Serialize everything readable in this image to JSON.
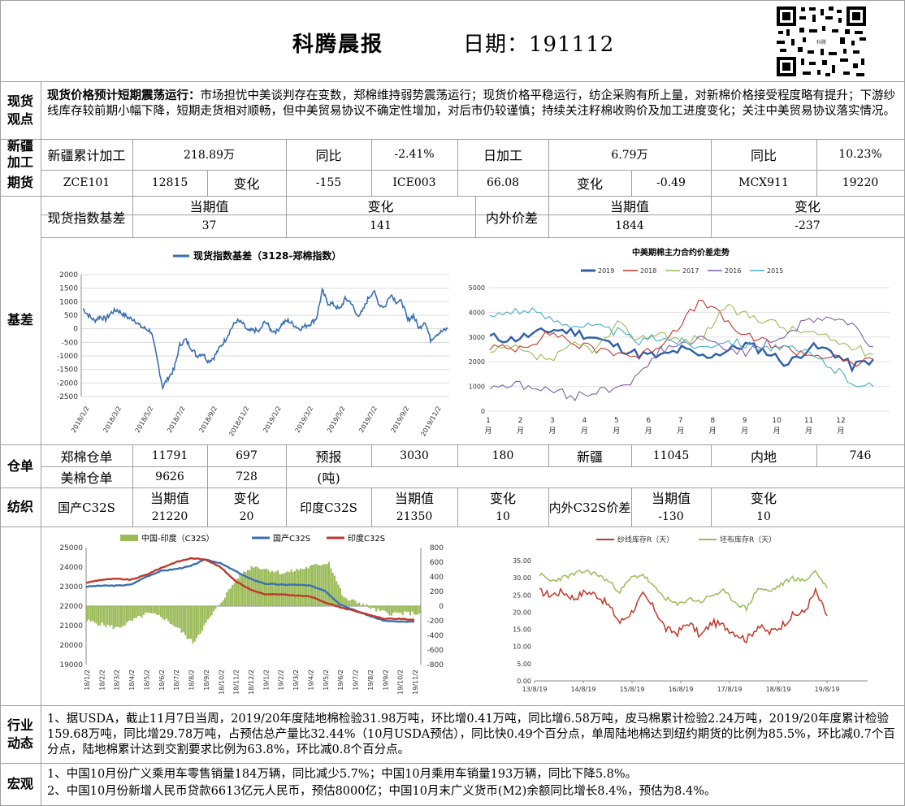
{
  "header": {
    "title": "科腾晨报",
    "date_label": "日期：191112"
  },
  "sections": {
    "spot": "现货\n观点",
    "xj": "新疆\n加工",
    "fut": "期货",
    "basis": "基差",
    "wh": "仓单",
    "tex": "纺织",
    "ind": "行业\n动态",
    "macro": "宏观"
  },
  "spot_view": {
    "lead": "现货价格预计短期震荡运行：",
    "body": "市场担忧中美谈判存在变数，郑棉维持弱势震荡运行；现货价格平稳运行，纺企采购有所上量，对新棉价格接受程度略有提升；下游纱线库存较前期小幅下降，短期走货相对顺畅，但中美贸易协议不确定性增加，对后市仍较谨慎；持续关注籽棉收购价及加工进度变化；关注中美贸易协议落实情况。"
  },
  "xj_row": [
    "新疆累计加工",
    "218.89万",
    "同比",
    "-2.41%",
    "日加工",
    "6.79万",
    "同比",
    "10.23%"
  ],
  "fut_row": [
    "ZCE101",
    "12815",
    "变化",
    "-155",
    "ICE003",
    "66.08",
    "变化",
    "-0.49",
    "MCX911",
    "19220"
  ],
  "basis_table": {
    "idx_label": "现货指数基差",
    "cur": "当期值",
    "chg": "变化",
    "idx_cur": "37",
    "idx_chg": "141",
    "io_label": "内外价差",
    "io_cur": "1844",
    "io_chg": "-237"
  },
  "warehouse": {
    "zz_label": "郑棉仓单",
    "zz_val": "11791",
    "zz_chg": "697",
    "yb1": "预报",
    "yb2": "(吨)",
    "yb_val": "3030",
    "yb_chg": "180",
    "xj_label": "新疆",
    "xj_val": "11045",
    "nd_label": "内地",
    "nd_val": "746",
    "us_label": "美棉仓单",
    "us_val": "9626",
    "us_chg": "728"
  },
  "textile": {
    "cur": "当期值",
    "chg": "变化",
    "gc_label": "国产C32S",
    "gc_cur": "21220",
    "gc_chg": "20",
    "yd_label": "印度C32S",
    "yd_cur": "21350",
    "yd_chg": "10",
    "nw_label": "内外C32S价差",
    "nw_cur": "-130",
    "nw_chg": "10"
  },
  "industry": "1、据USDA，截止11月7日当周，2019/20年度陆地棉检验31.98万吨，环比增0.41万吨，同比增6.58万吨，皮马棉累计检验2.24万吨，2019/20年度累计检验159.68万吨，同比增29.78万吨，占预估总产量比32.44%（10月USDA预估），同比快0.49个百分点，单周陆地棉达到纽约期货的比例为85.5%，环比减0.7个百分点，陆地棉累计达到交割要求比例为63.8%，环比减0.8个百分点。",
  "macro": [
    "1、中国10月份广义乘用车零售销量184万辆，同比减少5.7%；中国10月乘用车销量193万辆，同比下降5.8%。",
    "2、中国10月份新增人民币贷款6613亿元人民币，预估8000亿；中国10月末广义货币(M2)余额同比增长8.4%，预估为8.4%。"
  ],
  "chart_data": [
    {
      "type": "line",
      "title": "",
      "series": [
        {
          "name": "现货指数基差（3128-郑棉指数）",
          "color": "#3a6fb0"
        }
      ],
      "x_ticks": [
        "2018/1/2",
        "2018/3/2",
        "2018/5/2",
        "2018/7/2",
        "2018/9/2",
        "2018/11/2",
        "2019/1/2",
        "2019/3/2",
        "2019/5/2",
        "2019/7/2",
        "2019/9/2",
        "2019/11/2"
      ],
      "y_ticks": [
        "2000",
        "1500",
        "1000",
        "500",
        "0",
        "-500",
        "-1000",
        "-1500",
        "-2000",
        "-2500"
      ],
      "ylim": [
        -2500,
        2000
      ],
      "values": [
        750,
        500,
        300,
        450,
        350,
        600,
        700,
        550,
        400,
        350,
        100,
        0,
        -100,
        -1100,
        -2150,
        -1800,
        -1500,
        -600,
        -400,
        -700,
        -1000,
        -900,
        -1200,
        -1050,
        -700,
        -400,
        0,
        300,
        200,
        -100,
        -50,
        -100,
        300,
        -50,
        -100,
        200,
        300,
        150,
        0,
        100,
        200,
        400,
        1400,
        950,
        900,
        700,
        1100,
        1000,
        500,
        600,
        1100,
        1400,
        900,
        800,
        1300,
        1000,
        1000,
        300,
        500,
        0,
        300,
        -400,
        -200,
        -100,
        0
      ]
    },
    {
      "type": "line",
      "title": "中美期棉主力合约价差走势",
      "series": [
        {
          "name": "2019",
          "color": "#2e5ea8",
          "values": [
            3000,
            2900,
            3100,
            3300,
            3200,
            2950,
            2600,
            2300,
            2200,
            2500,
            2200,
            2400,
            2700,
            2400,
            1900,
            2600,
            2450,
            1800,
            2100
          ]
        },
        {
          "name": "2018",
          "color": "#c0392b",
          "values": [
            2600,
            2500,
            2800,
            3200,
            2700,
            2500,
            2400,
            2200,
            2700,
            3600,
            4500,
            3700,
            3000,
            2800,
            2500,
            2300,
            2200,
            1900,
            2100
          ]
        },
        {
          "name": "2017",
          "color": "#9bbb59",
          "values": [
            2300,
            2600,
            2200,
            2100,
            2700,
            2500,
            3500,
            2900,
            3200,
            2800,
            3000,
            4200,
            3900,
            3700,
            3300,
            3200,
            2900,
            2600,
            2300
          ]
        },
        {
          "name": "2016",
          "color": "#7d5fa8",
          "values": [
            1000,
            1100,
            950,
            800,
            600,
            800,
            1000,
            1400,
            2500,
            2700,
            2900,
            2600,
            2400,
            2700,
            3200,
            3700,
            3800,
            3500,
            2600
          ]
        },
        {
          "name": "2015",
          "color": "#4bacc6",
          "values": [
            3800,
            4100,
            4000,
            3700,
            3500,
            3400,
            3200,
            2800,
            3000,
            2800,
            2600,
            2900,
            2700,
            2600,
            2500,
            2300,
            1800,
            1200,
            1000
          ]
        }
      ],
      "x_ticks": [
        "1\n月",
        "2\n月",
        "3\n月",
        "4\n月",
        "5\n月",
        "6\n月",
        "7\n月",
        "8\n月",
        "9\n月",
        "10\n月",
        "11\n月",
        "12\n月"
      ],
      "y_ticks": [
        "5000",
        "4000",
        "3000",
        "2000",
        "1000",
        "0"
      ],
      "ylim": [
        0,
        5000
      ]
    },
    {
      "type": "line",
      "title": "",
      "legend": [
        "中国-印度（C32S）",
        "国产C32S",
        "印度C32S"
      ],
      "x_ticks": [
        "18/1/2",
        "18/2/2",
        "18/3/2",
        "18/4/2",
        "18/5/2",
        "18/6/2",
        "18/7/2",
        "18/8/2",
        "18/9/2",
        "18/10/2",
        "18/11/2",
        "18/12/2",
        "19/1/2",
        "19/2/2",
        "19/3/2",
        "19/4/2",
        "19/5/2",
        "19/6/2",
        "19/7/2",
        "19/8/2",
        "19/9/2",
        "19/10/2",
        "19/11/2"
      ],
      "y_left": [
        "25000",
        "24000",
        "23000",
        "22000",
        "21000",
        "20000",
        "19000"
      ],
      "y_right": [
        "800",
        "600",
        "400",
        "200",
        "0",
        "-200",
        "-400",
        "-600",
        "-800"
      ],
      "ylim_left": [
        19000,
        25000
      ],
      "ylim_right": [
        -800,
        800
      ],
      "domestic": [
        23000,
        23050,
        23050,
        23100,
        23500,
        23800,
        23900,
        24050,
        24400,
        24200,
        23800,
        23400,
        23150,
        23100,
        23100,
        23050,
        22800,
        22100,
        21800,
        21500,
        21250,
        21200,
        21200
      ],
      "india": [
        23200,
        23350,
        23400,
        23350,
        23600,
        23950,
        24250,
        24450,
        24400,
        24000,
        23300,
        22850,
        22600,
        22600,
        22550,
        22500,
        22200,
        21950,
        21750,
        21550,
        21350,
        21350,
        21300
      ],
      "spread": [
        -200,
        -250,
        -300,
        -200,
        -100,
        -150,
        -300,
        -500,
        -200,
        100,
        400,
        550,
        500,
        450,
        500,
        550,
        600,
        100,
        50,
        -50,
        -100,
        -100,
        -100
      ]
    },
    {
      "type": "line",
      "title": "",
      "legend": [
        "纱线库存R（天）",
        "坯布库存R（天）"
      ],
      "x_ticks": [
        "13/8/19",
        "14/8/19",
        "15/8/19",
        "16/8/19",
        "17/8/19",
        "18/8/19",
        "19/8/19"
      ],
      "y_ticks": [
        "35.00",
        "30.00",
        "25.00",
        "20.00",
        "15.00",
        "10.00",
        "5.00",
        "0.00"
      ],
      "ylim": [
        0,
        35
      ],
      "yarn": [
        26,
        25,
        26,
        24,
        26,
        25,
        22,
        17,
        20,
        25,
        21,
        15,
        14,
        17,
        13,
        17,
        16,
        14,
        12,
        16,
        14,
        16,
        19,
        20,
        26,
        19
      ],
      "cloth": [
        31,
        29,
        30,
        31,
        32,
        31,
        29,
        26,
        30,
        31,
        27,
        24,
        22,
        24,
        23,
        25,
        26,
        23,
        21,
        27,
        26,
        28,
        30,
        29,
        32,
        27
      ]
    }
  ]
}
